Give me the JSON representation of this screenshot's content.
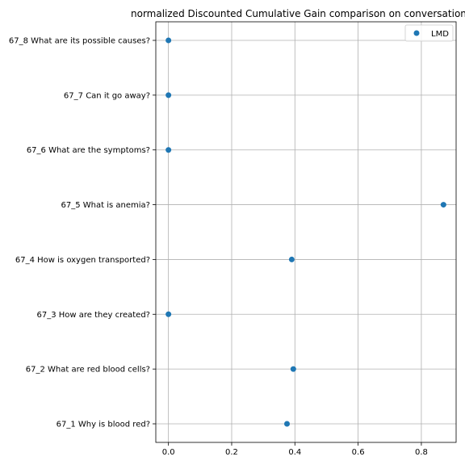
{
  "chart_data": {
    "type": "scatter",
    "title": "normalized Discounted Cumulative Gain comparison on conversation",
    "xlabel": "",
    "ylabel": "",
    "xlim": [
      -0.04,
      0.91
    ],
    "x_ticks": [
      0.0,
      0.2,
      0.4,
      0.6,
      0.8
    ],
    "x_tick_labels": [
      "0.0",
      "0.2",
      "0.4",
      "0.6",
      "0.8"
    ],
    "categories": [
      "67_1 Why is blood red?",
      "67_2 What are red blood cells?",
      "67_3 How are they created?",
      "67_4 How is oxygen transported?",
      "67_5 What is anemia?",
      "67_6 What are the symptoms?",
      "67_7 Can it go away?",
      "67_8 What are its possible causes?"
    ],
    "series": [
      {
        "name": "LMD",
        "color": "#1f77b4",
        "values": [
          0.375,
          0.395,
          0.0,
          0.39,
          0.87,
          0.0,
          0.0,
          0.0
        ]
      }
    ],
    "grid": true,
    "legend": "top-right"
  }
}
